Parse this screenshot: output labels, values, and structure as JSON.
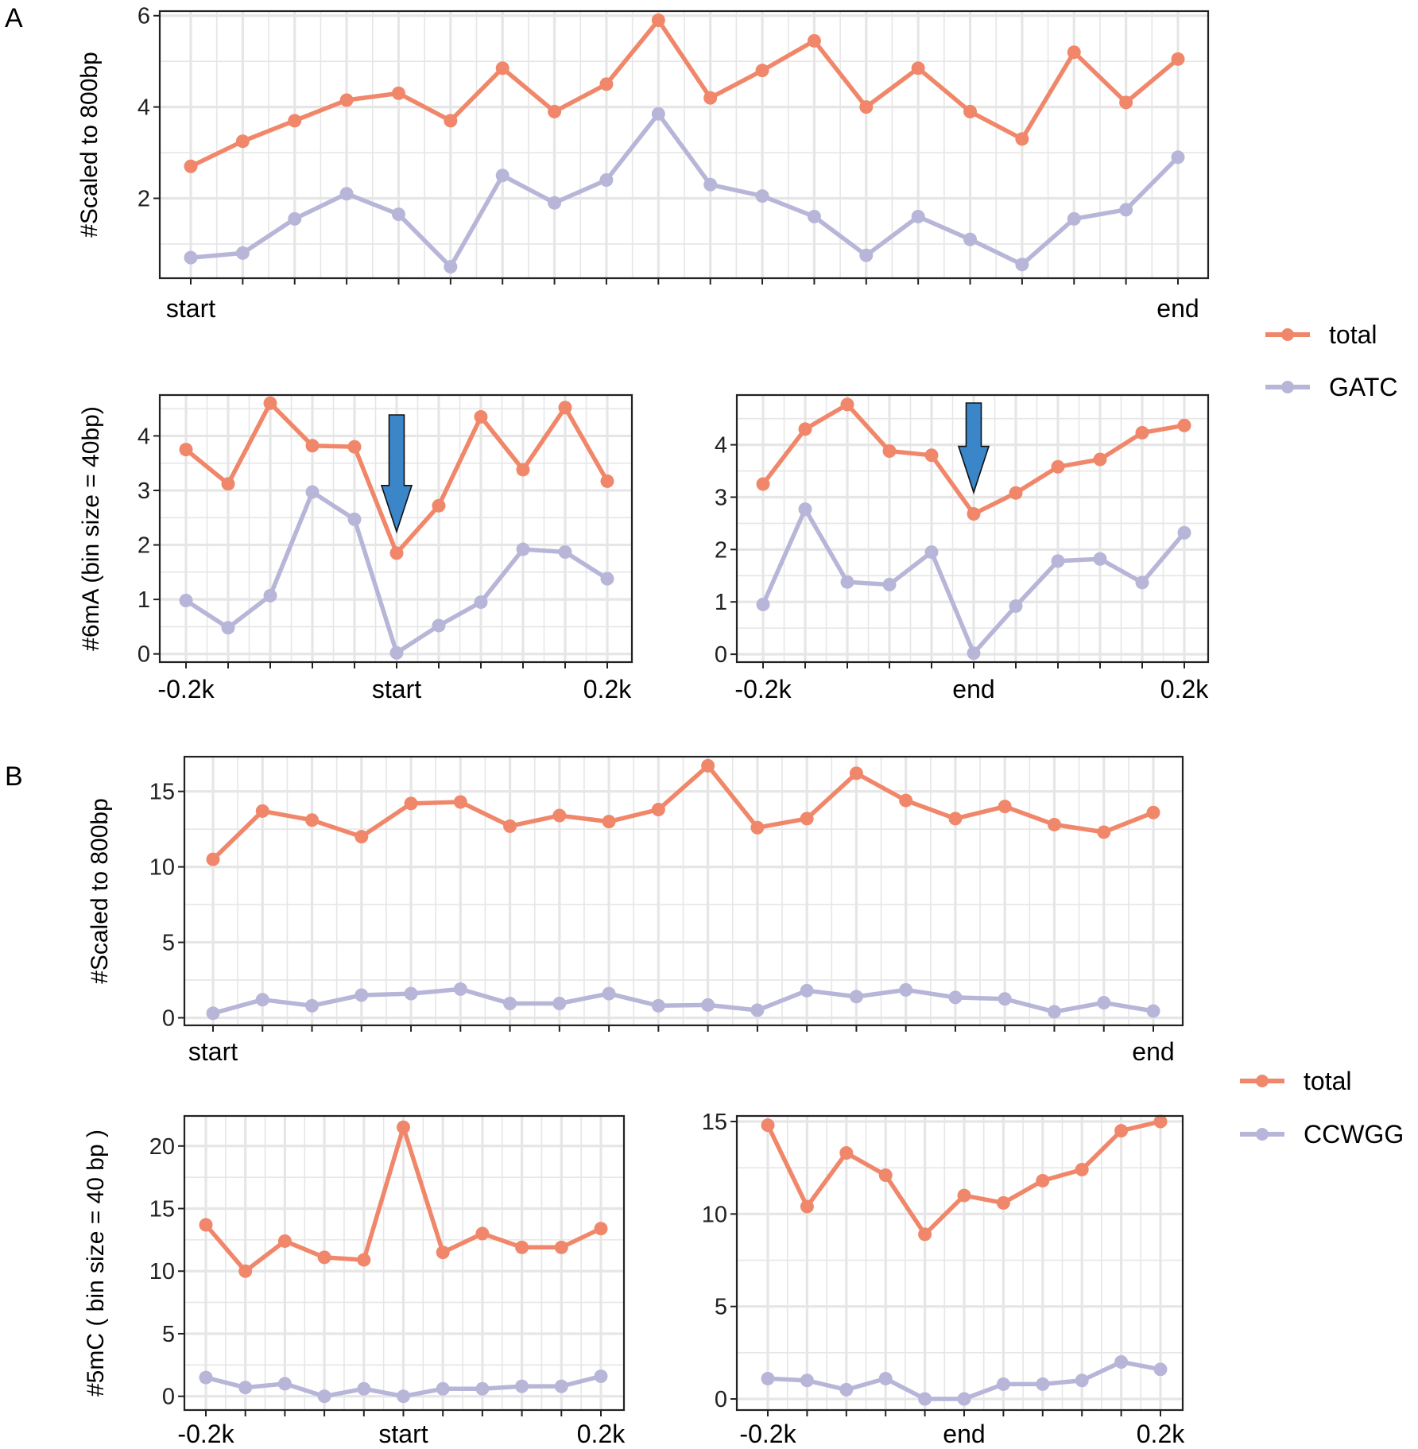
{
  "figure": {
    "panel_letters": [
      "A",
      "B"
    ],
    "colors": {
      "total": "#F0876A",
      "methylation_motif": "#B7B6D8",
      "arrow": "#3A86C8",
      "grid": "#E6E6E6",
      "frame": "#222222"
    }
  },
  "legends": [
    {
      "entries": [
        "total",
        "GATC"
      ]
    },
    {
      "entries": [
        "total",
        "CCWGG"
      ]
    }
  ],
  "chart_data": [
    {
      "id": "A-top",
      "type": "line",
      "panel": "A",
      "title": "",
      "ylabel": "#Scaled to 800bp",
      "xlabel": "",
      "x": [
        1,
        2,
        3,
        4,
        5,
        6,
        7,
        8,
        9,
        10,
        11,
        12,
        13,
        14,
        15,
        16,
        17,
        18,
        19,
        20
      ],
      "xtick_labels": [
        {
          "x": 1,
          "label": "start"
        },
        {
          "x": 20,
          "label": "end"
        }
      ],
      "ylim": [
        0.25,
        6.1
      ],
      "yticks": [
        2,
        4,
        6
      ],
      "grid": true,
      "series": [
        {
          "name": "total",
          "values": [
            2.7,
            3.25,
            3.7,
            4.15,
            4.3,
            3.7,
            4.85,
            3.9,
            4.5,
            5.9,
            4.2,
            4.8,
            5.45,
            4.0,
            4.85,
            3.9,
            3.3,
            5.2,
            4.1,
            5.05
          ]
        },
        {
          "name": "GATC",
          "values": [
            0.7,
            0.8,
            1.55,
            2.1,
            1.65,
            0.5,
            2.5,
            1.9,
            2.4,
            3.85,
            2.3,
            2.05,
            1.6,
            0.75,
            1.6,
            1.1,
            0.55,
            1.55,
            1.75,
            2.9
          ]
        }
      ]
    },
    {
      "id": "A-bottom-left",
      "type": "line",
      "panel": "A",
      "ylabel": "#6mA (bin size = 40bp)",
      "x": [
        -0.2,
        -0.16,
        -0.12,
        -0.08,
        -0.04,
        0,
        0.04,
        0.08,
        0.12,
        0.16,
        0.2
      ],
      "xtick_labels": [
        {
          "x": -0.2,
          "label": "-0.2k"
        },
        {
          "x": 0,
          "label": "start"
        },
        {
          "x": 0.2,
          "label": "0.2k"
        }
      ],
      "ylim": [
        -0.15,
        4.75
      ],
      "yticks": [
        0,
        1,
        2,
        3,
        4
      ],
      "grid": true,
      "annotations": [
        {
          "type": "down-arrow",
          "x": 0
        }
      ],
      "series": [
        {
          "name": "total",
          "values": [
            3.75,
            3.12,
            4.6,
            3.82,
            3.8,
            1.85,
            2.72,
            4.35,
            3.38,
            4.52,
            3.17
          ]
        },
        {
          "name": "GATC",
          "values": [
            0.98,
            0.48,
            1.07,
            2.97,
            2.47,
            0.02,
            0.52,
            0.95,
            1.92,
            1.87,
            1.38
          ]
        }
      ]
    },
    {
      "id": "A-bottom-right",
      "type": "line",
      "panel": "A",
      "ylabel": "",
      "x": [
        -0.2,
        -0.16,
        -0.12,
        -0.08,
        -0.04,
        0,
        0.04,
        0.08,
        0.12,
        0.16,
        0.2
      ],
      "xtick_labels": [
        {
          "x": -0.2,
          "label": "-0.2k"
        },
        {
          "x": 0,
          "label": "end"
        },
        {
          "x": 0.2,
          "label": "0.2k"
        }
      ],
      "ylim": [
        -0.15,
        4.95
      ],
      "yticks": [
        0,
        1,
        2,
        3,
        4
      ],
      "grid": true,
      "annotations": [
        {
          "type": "down-arrow",
          "x": 0
        }
      ],
      "series": [
        {
          "name": "total",
          "values": [
            3.25,
            4.3,
            4.77,
            3.88,
            3.8,
            2.68,
            3.08,
            3.58,
            3.72,
            4.23,
            4.37
          ]
        },
        {
          "name": "GATC",
          "values": [
            0.95,
            2.77,
            1.38,
            1.33,
            1.95,
            0.02,
            0.92,
            1.78,
            1.82,
            1.37,
            2.32
          ]
        }
      ]
    },
    {
      "id": "B-top",
      "type": "line",
      "panel": "B",
      "ylabel": "#Scaled to 800bp",
      "x": [
        1,
        2,
        3,
        4,
        5,
        6,
        7,
        8,
        9,
        10,
        11,
        12,
        13,
        14,
        15,
        16,
        17,
        18,
        19,
        20
      ],
      "xtick_labels": [
        {
          "x": 1,
          "label": "start"
        },
        {
          "x": 20,
          "label": "end"
        }
      ],
      "ylim": [
        -0.5,
        17.3
      ],
      "yticks": [
        0,
        5,
        10,
        15
      ],
      "grid": true,
      "series": [
        {
          "name": "total",
          "values": [
            10.5,
            13.7,
            13.1,
            12.0,
            14.2,
            14.3,
            12.7,
            13.4,
            13.0,
            13.8,
            16.7,
            12.6,
            13.2,
            16.2,
            14.4,
            13.2,
            14.0,
            12.8,
            12.3,
            13.6
          ]
        },
        {
          "name": "CCWGG",
          "values": [
            0.3,
            1.2,
            0.8,
            1.5,
            1.6,
            1.9,
            0.95,
            0.95,
            1.6,
            0.8,
            0.85,
            0.5,
            1.8,
            1.4,
            1.85,
            1.35,
            1.25,
            0.4,
            1.0,
            0.45
          ]
        }
      ]
    },
    {
      "id": "B-bottom-left",
      "type": "line",
      "panel": "B",
      "ylabel": "#5mC ( bin size = 40 bp )",
      "x": [
        -0.2,
        -0.16,
        -0.12,
        -0.08,
        -0.04,
        0,
        0.04,
        0.08,
        0.12,
        0.16,
        0.2
      ],
      "xtick_labels": [
        {
          "x": -0.2,
          "label": "-0.2k"
        },
        {
          "x": 0,
          "label": "start"
        },
        {
          "x": 0.2,
          "label": "0.2k"
        }
      ],
      "ylim": [
        -1.1,
        22.4
      ],
      "yticks": [
        0,
        5,
        10,
        15,
        20
      ],
      "grid": true,
      "series": [
        {
          "name": "total",
          "values": [
            13.7,
            10.0,
            12.4,
            11.1,
            10.9,
            21.5,
            11.5,
            13.0,
            11.9,
            11.9,
            13.4
          ]
        },
        {
          "name": "CCWGG",
          "values": [
            1.5,
            0.7,
            1.0,
            0.0,
            0.6,
            0.0,
            0.6,
            0.6,
            0.8,
            0.8,
            1.6
          ]
        }
      ]
    },
    {
      "id": "B-bottom-right",
      "type": "line",
      "panel": "B",
      "ylabel": "",
      "x": [
        -0.2,
        -0.16,
        -0.12,
        -0.08,
        -0.04,
        0,
        0.04,
        0.08,
        0.12,
        0.16,
        0.2
      ],
      "xtick_labels": [
        {
          "x": -0.2,
          "label": "-0.2k"
        },
        {
          "x": 0,
          "label": "end"
        },
        {
          "x": 0.2,
          "label": "0.2k"
        }
      ],
      "ylim": [
        -0.6,
        15.3
      ],
      "yticks": [
        0,
        5,
        10,
        15
      ],
      "grid": true,
      "series": [
        {
          "name": "total",
          "values": [
            14.8,
            10.4,
            13.3,
            12.1,
            8.9,
            11.0,
            10.6,
            11.8,
            12.4,
            14.5,
            15.0
          ]
        },
        {
          "name": "CCWGG",
          "values": [
            1.1,
            1.0,
            0.5,
            1.1,
            0.0,
            0.0,
            0.8,
            0.8,
            1.0,
            2.0,
            1.6
          ]
        }
      ]
    }
  ]
}
